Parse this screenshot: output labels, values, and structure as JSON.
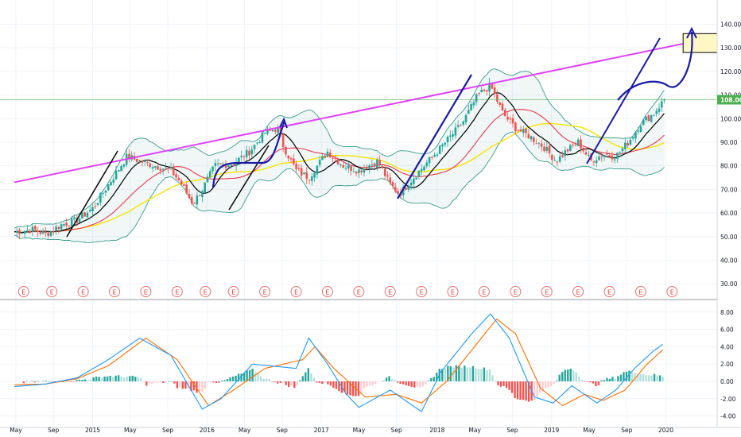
{
  "chart_data": [
    {
      "type": "candlestick",
      "title": "",
      "ylim": [
        25,
        145
      ],
      "y_ticks": [
        "30.00",
        "40.00",
        "50.00",
        "60.00",
        "70.00",
        "80.00",
        "90.00",
        "100.00",
        "110.00",
        "120.00",
        "130.00",
        "140.00"
      ],
      "x_ticks": [
        "May",
        "Sep",
        "2015",
        "May",
        "Sep",
        "2016",
        "May",
        "Sep",
        "2017",
        "May",
        "Sep",
        "2018",
        "May",
        "Sep",
        "2019",
        "May",
        "Sep",
        "2020"
      ],
      "last_price": "108.00",
      "colors": {
        "up": "#26a69a",
        "down": "#ef5350",
        "trendline": "#e040fb",
        "projection": "#1a1aa6",
        "ma_fast": "#000000",
        "ma_mid": "#e53950",
        "ma_slow": "#f5e400",
        "bands": "#3a9a8a",
        "price_line": "#4caf50",
        "target_box": "#fff8c4"
      },
      "series": [
        {
          "name": "price_anchor",
          "values": [
            {
              "t": 0.0,
              "v": 52
            },
            {
              "t": 0.6,
              "v": 53
            },
            {
              "t": 1.0,
              "v": 51
            },
            {
              "t": 1.5,
              "v": 55
            },
            {
              "t": 2.0,
              "v": 57
            },
            {
              "t": 2.5,
              "v": 62
            },
            {
              "t": 3.0,
              "v": 72
            },
            {
              "t": 3.3,
              "v": 78
            },
            {
              "t": 3.6,
              "v": 84
            },
            {
              "t": 4.0,
              "v": 82
            },
            {
              "t": 4.5,
              "v": 80
            },
            {
              "t": 5.0,
              "v": 78
            },
            {
              "t": 5.3,
              "v": 73
            },
            {
              "t": 5.7,
              "v": 64
            },
            {
              "t": 6.0,
              "v": 70
            },
            {
              "t": 6.4,
              "v": 80
            },
            {
              "t": 7.0,
              "v": 81
            },
            {
              "t": 7.5,
              "v": 86
            },
            {
              "t": 8.0,
              "v": 94
            },
            {
              "t": 8.4,
              "v": 96
            },
            {
              "t": 8.6,
              "v": 88
            },
            {
              "t": 9.0,
              "v": 78
            },
            {
              "t": 9.4,
              "v": 75
            },
            {
              "t": 10.0,
              "v": 86
            },
            {
              "t": 10.5,
              "v": 80
            },
            {
              "t": 11.0,
              "v": 78
            },
            {
              "t": 11.6,
              "v": 82
            },
            {
              "t": 12.0,
              "v": 72
            },
            {
              "t": 12.3,
              "v": 68
            },
            {
              "t": 12.8,
              "v": 76
            },
            {
              "t": 13.5,
              "v": 86
            },
            {
              "t": 14.3,
              "v": 98
            },
            {
              "t": 14.8,
              "v": 110
            },
            {
              "t": 15.2,
              "v": 114
            },
            {
              "t": 15.6,
              "v": 102
            },
            {
              "t": 16.0,
              "v": 96
            },
            {
              "t": 16.5,
              "v": 92
            },
            {
              "t": 16.9,
              "v": 88
            },
            {
              "t": 17.3,
              "v": 82
            },
            {
              "t": 17.6,
              "v": 86
            },
            {
              "t": 18.0,
              "v": 90
            },
            {
              "t": 18.4,
              "v": 82
            },
            {
              "t": 18.8,
              "v": 85
            },
            {
              "t": 19.2,
              "v": 84
            },
            {
              "t": 19.6,
              "v": 90
            },
            {
              "t": 20.0,
              "v": 98
            },
            {
              "t": 20.4,
              "v": 102
            },
            {
              "t": 20.75,
              "v": 108
            }
          ]
        }
      ],
      "annotations": [
        {
          "type": "trendline",
          "from": {
            "t": 0.0,
            "v": 73
          },
          "to": {
            "t": 22.9,
            "v": 136
          }
        },
        {
          "type": "horizontal",
          "v": 108
        },
        {
          "type": "target_box",
          "from": {
            "t": 21.35,
            "v": 128
          },
          "to": {
            "t": 22.9,
            "v": 136
          }
        }
      ],
      "events": [
        {
          "t": 0.4,
          "label": "E"
        },
        {
          "t": 1.3,
          "label": "E"
        },
        {
          "t": 2.3,
          "label": "E"
        },
        {
          "t": 3.3,
          "label": "E"
        },
        {
          "t": 4.3,
          "label": "E"
        },
        {
          "t": 5.3,
          "label": "E"
        },
        {
          "t": 6.2,
          "label": "E"
        },
        {
          "t": 7.1,
          "label": "E"
        },
        {
          "t": 8.1,
          "label": "E"
        },
        {
          "t": 9.1,
          "label": "E"
        },
        {
          "t": 10.1,
          "label": "E"
        },
        {
          "t": 11.1,
          "label": "E"
        },
        {
          "t": 12.1,
          "label": "E"
        },
        {
          "t": 13.1,
          "label": "E"
        },
        {
          "t": 14.1,
          "label": "E"
        },
        {
          "t": 15.1,
          "label": "E"
        },
        {
          "t": 16.1,
          "label": "E"
        },
        {
          "t": 17.1,
          "label": "E"
        },
        {
          "t": 18.1,
          "label": "E"
        },
        {
          "t": 19.1,
          "label": "E"
        },
        {
          "t": 20.1,
          "label": "E"
        },
        {
          "t": 21.1,
          "label": "E"
        }
      ]
    },
    {
      "type": "macd",
      "ylim": [
        -5,
        9
      ],
      "y_ticks": [
        "-4.00",
        "-2.00",
        "0.00",
        "2.00",
        "4.00",
        "6.00",
        "8.00"
      ],
      "series": [
        {
          "name": "macd",
          "values": [
            {
              "t": 0.0,
              "v": -0.6
            },
            {
              "t": 1.0,
              "v": -0.3
            },
            {
              "t": 2.0,
              "v": 0.4
            },
            {
              "t": 3.0,
              "v": 2.5
            },
            {
              "t": 4.0,
              "v": 5.0
            },
            {
              "t": 5.0,
              "v": 3.0
            },
            {
              "t": 6.0,
              "v": -3.2
            },
            {
              "t": 6.6,
              "v": -2.0
            },
            {
              "t": 7.6,
              "v": 2.0
            },
            {
              "t": 9.0,
              "v": 1.5
            },
            {
              "t": 9.4,
              "v": 5.0
            },
            {
              "t": 10.0,
              "v": 2.0
            },
            {
              "t": 10.6,
              "v": -1.5
            },
            {
              "t": 11.0,
              "v": -3.0
            },
            {
              "t": 12.0,
              "v": -1.0
            },
            {
              "t": 13.0,
              "v": -3.5
            },
            {
              "t": 13.6,
              "v": 1.0
            },
            {
              "t": 14.6,
              "v": 5.5
            },
            {
              "t": 15.2,
              "v": 7.8
            },
            {
              "t": 15.8,
              "v": 5.0
            },
            {
              "t": 16.6,
              "v": -1.8
            },
            {
              "t": 17.2,
              "v": -2.5
            },
            {
              "t": 17.8,
              "v": -0.5
            },
            {
              "t": 18.6,
              "v": -2.5
            },
            {
              "t": 19.2,
              "v": -1.0
            },
            {
              "t": 19.8,
              "v": 1.5
            },
            {
              "t": 20.4,
              "v": 3.5
            },
            {
              "t": 20.75,
              "v": 4.4
            }
          ]
        },
        {
          "name": "signal",
          "values": [
            {
              "t": 0.0,
              "v": -0.4
            },
            {
              "t": 1.0,
              "v": -0.3
            },
            {
              "t": 2.0,
              "v": 0.3
            },
            {
              "t": 3.0,
              "v": 1.8
            },
            {
              "t": 4.2,
              "v": 5.0
            },
            {
              "t": 5.2,
              "v": 2.5
            },
            {
              "t": 6.2,
              "v": -2.8
            },
            {
              "t": 7.0,
              "v": -1.0
            },
            {
              "t": 8.0,
              "v": 1.5
            },
            {
              "t": 9.2,
              "v": 2.5
            },
            {
              "t": 9.6,
              "v": 4.0
            },
            {
              "t": 10.2,
              "v": 1.5
            },
            {
              "t": 11.2,
              "v": -1.8
            },
            {
              "t": 12.2,
              "v": -1.5
            },
            {
              "t": 13.0,
              "v": -2.5
            },
            {
              "t": 13.8,
              "v": 0.0
            },
            {
              "t": 14.8,
              "v": 4.5
            },
            {
              "t": 15.4,
              "v": 7.2
            },
            {
              "t": 16.0,
              "v": 5.5
            },
            {
              "t": 16.8,
              "v": -0.8
            },
            {
              "t": 17.5,
              "v": -2.8
            },
            {
              "t": 18.2,
              "v": -1.5
            },
            {
              "t": 18.8,
              "v": -2.2
            },
            {
              "t": 19.5,
              "v": -1.0
            },
            {
              "t": 20.2,
              "v": 2.0
            },
            {
              "t": 20.75,
              "v": 3.8
            }
          ]
        }
      ]
    }
  ]
}
